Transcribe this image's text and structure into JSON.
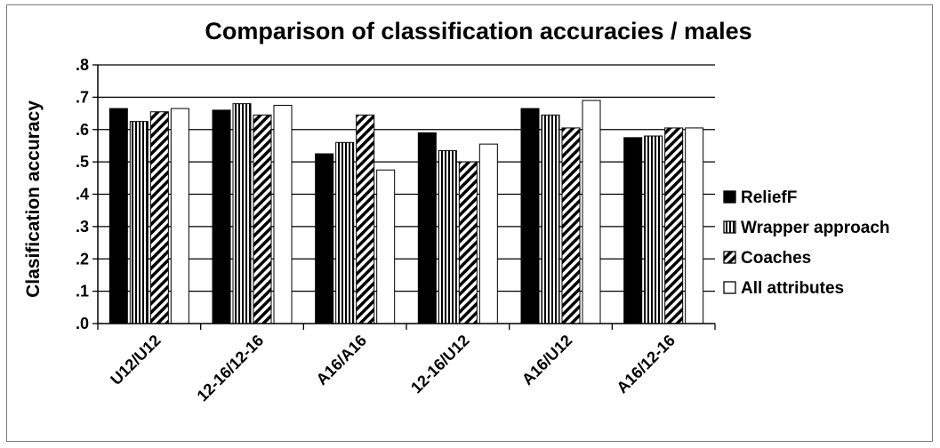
{
  "chart_data": {
    "type": "bar",
    "title": "Comparison of classification accuracies / males",
    "xlabel": "",
    "ylabel": "Clasification accuracy",
    "ylim": [
      0,
      0.8
    ],
    "yticks": [
      ".0",
      ".1",
      ".2",
      ".3",
      ".4",
      ".5",
      ".6",
      ".7",
      ".8"
    ],
    "grid": "horizontal",
    "legend_position": "right",
    "categories": [
      "U12/U12",
      "12-16/12-16",
      "A16/A16",
      "12-16/U12",
      "A16/U12",
      "A16/12-16"
    ],
    "series": [
      {
        "name": "ReliefF",
        "values": [
          0.665,
          0.66,
          0.525,
          0.59,
          0.665,
          0.575
        ],
        "pattern": "solid",
        "color": "#000000"
      },
      {
        "name": "Wrapper approach",
        "values": [
          0.625,
          0.68,
          0.56,
          0.535,
          0.645,
          0.58
        ],
        "pattern": "vertical-stripes",
        "color": "#000000"
      },
      {
        "name": "Coaches",
        "values": [
          0.655,
          0.645,
          0.645,
          0.5,
          0.605,
          0.605
        ],
        "pattern": "diagonal-stripes",
        "color": "#000000"
      },
      {
        "name": "All attributes",
        "values": [
          0.665,
          0.675,
          0.475,
          0.555,
          0.69,
          0.605
        ],
        "pattern": "white",
        "color": "#ffffff"
      }
    ]
  }
}
